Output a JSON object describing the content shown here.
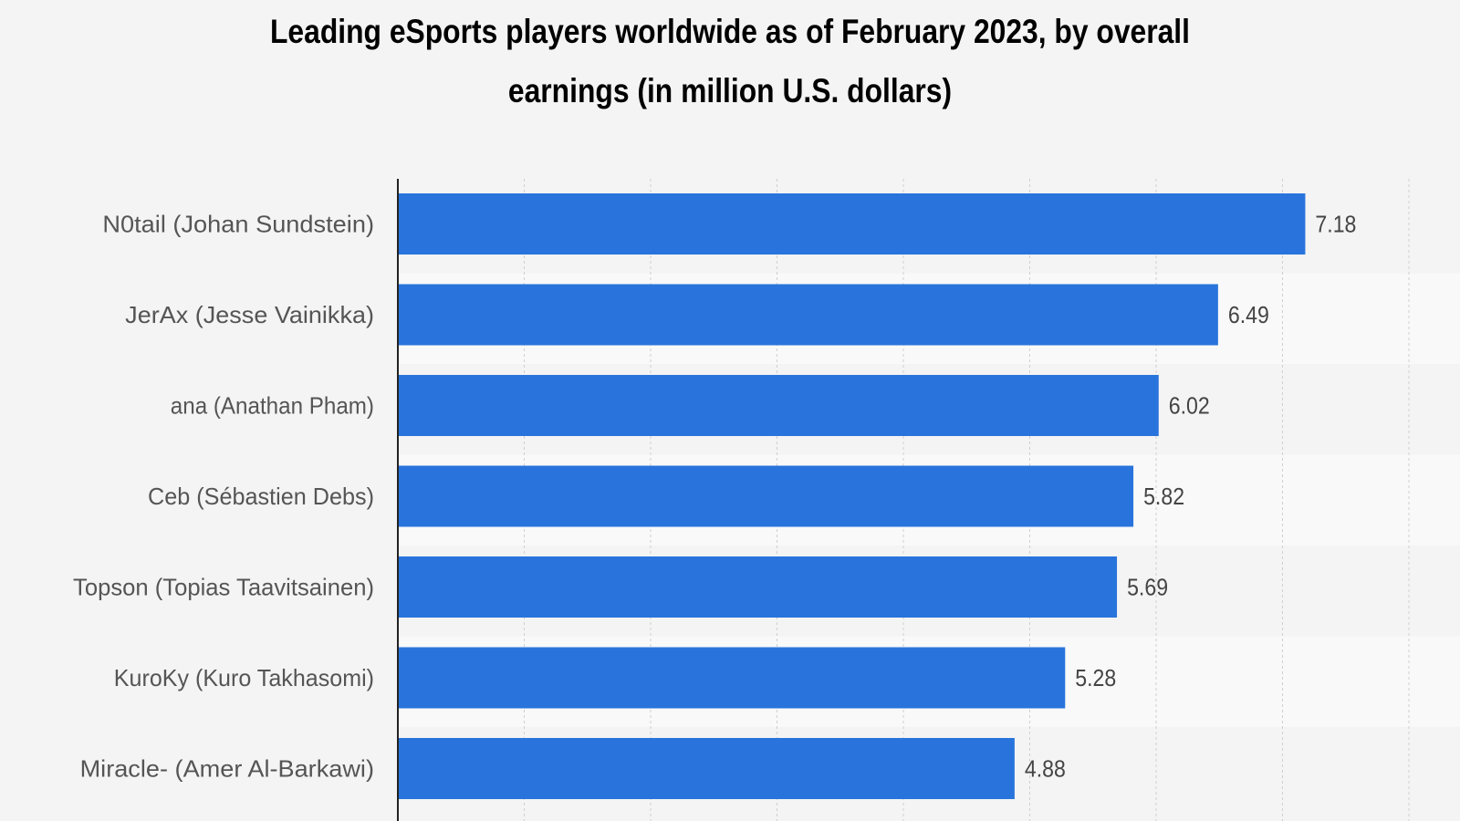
{
  "chart_data": {
    "type": "bar",
    "orientation": "horizontal",
    "title": "Leading eSports players worldwide as of February 2023, by overall earnings (in million U.S. dollars)",
    "xlabel": "",
    "ylabel": "",
    "xlim": [
      0,
      8
    ],
    "grid": true,
    "categories": [
      "N0tail (Johan Sundstein)",
      "JerAx (Jesse Vainikka)",
      "ana (Anathan Pham)",
      "Ceb (Sébastien Debs)",
      "Topson (Topias Taavitsainen)",
      "KuroKy (Kuro Takhasomi)",
      "Miracle- (Amer Al-Barkawi)"
    ],
    "values": [
      7.18,
      6.49,
      6.02,
      5.82,
      5.69,
      5.28,
      4.88
    ],
    "value_labels": [
      "7.18",
      "6.49",
      "6.02",
      "5.82",
      "5.69",
      "5.28",
      "4.88"
    ]
  },
  "colors": {
    "bar": "#2874dc",
    "background": "#f4f4f4",
    "band": "#f9f9f9",
    "grid": "#cfcfcf",
    "axis": "#222222"
  }
}
